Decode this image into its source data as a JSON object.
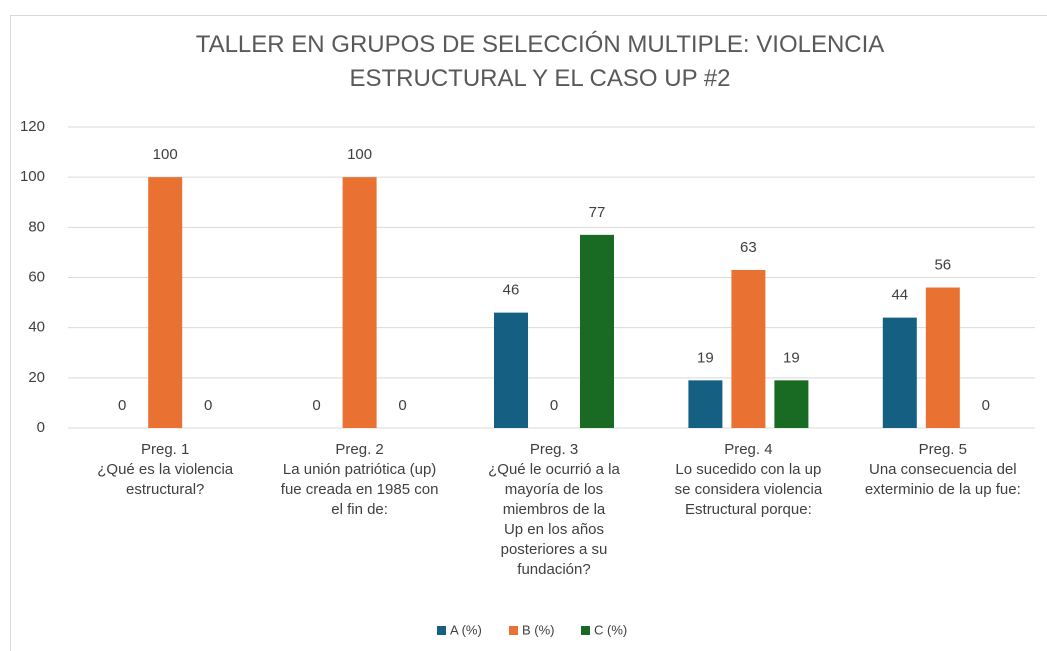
{
  "chart_data": {
    "type": "bar",
    "title": "TALLER EN GRUPOS DE SELECCIÓN MULTIPLE: VIOLENCIA ESTRUCTURAL Y EL CASO UP #2",
    "categories": [
      "Preg. 1\n¿Qué es la violencia\nestructural?",
      "Preg. 2\nLa unión patriótica (up)\nfue creada en 1985 con\nel fin de:",
      "Preg. 3\n¿Qué le ocurrió a la\nmayoría de los\nmiembros de la\nUp en los años\nposteriores a su\nfundación?",
      "Preg. 4\nLo sucedido con la up\nse considera violencia\nEstructural porque:",
      "Preg. 5\nUna consecuencia del\nexterminio de la up fue:"
    ],
    "series": [
      {
        "name": "A (%)",
        "color": "#156082",
        "values": [
          0,
          0,
          46,
          19,
          44
        ]
      },
      {
        "name": "B (%)",
        "color": "#e97132",
        "values": [
          100,
          100,
          0,
          63,
          56
        ]
      },
      {
        "name": "C (%)",
        "color": "#196b24",
        "values": [
          0,
          0,
          77,
          19,
          0
        ]
      }
    ],
    "ylim": [
      0,
      120
    ],
    "yticks": [
      0,
      20,
      40,
      60,
      80,
      100,
      120
    ],
    "grid": true,
    "legend": "bottom"
  }
}
